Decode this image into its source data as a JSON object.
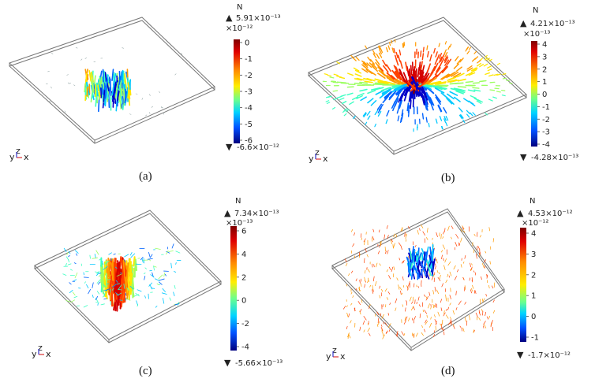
{
  "panels": [
    {
      "id": "a",
      "caption": "(a)",
      "unit": "N",
      "max_label": "5.91×10⁻¹³",
      "min_label": "-6.6×10⁻¹²",
      "scale_label": "×10⁻¹²",
      "ticks": [
        "0",
        "-1",
        "-2",
        "-3",
        "-4",
        "-5",
        "-6"
      ],
      "pattern": "center-cluster"
    },
    {
      "id": "b",
      "caption": "(b)",
      "unit": "N",
      "max_label": "4.21×10⁻¹³",
      "min_label": "-4.28×10⁻¹³",
      "scale_label": "×10⁻¹³",
      "ticks": [
        "4",
        "3",
        "2",
        "1",
        "0",
        "-1",
        "-2",
        "-3",
        "-4"
      ],
      "pattern": "radial-split"
    },
    {
      "id": "c",
      "caption": "(c)",
      "unit": "N",
      "max_label": "7.34×10⁻¹³",
      "min_label": "-5.66×10⁻¹³",
      "scale_label": "×10⁻¹³",
      "ticks": [
        "6",
        "4",
        "2",
        "0",
        "-2",
        "-4"
      ],
      "pattern": "center-red"
    },
    {
      "id": "d",
      "caption": "(d)",
      "unit": "N",
      "max_label": "4.53×10⁻¹²",
      "min_label": "-1.7×10⁻¹²",
      "scale_label": "×10⁻¹²",
      "ticks": [
        "4",
        "3",
        "2",
        "1",
        "0",
        "-1"
      ],
      "pattern": "sparse-orange"
    }
  ],
  "triad": {
    "y": "y",
    "z": "z",
    "x": "x"
  },
  "colormap": [
    "#7f0000",
    "#d40000",
    "#ff4000",
    "#ff9a00",
    "#ffe600",
    "#9cff62",
    "#3cffc2",
    "#00c8ff",
    "#0064ff",
    "#0000c8",
    "#00007f"
  ]
}
